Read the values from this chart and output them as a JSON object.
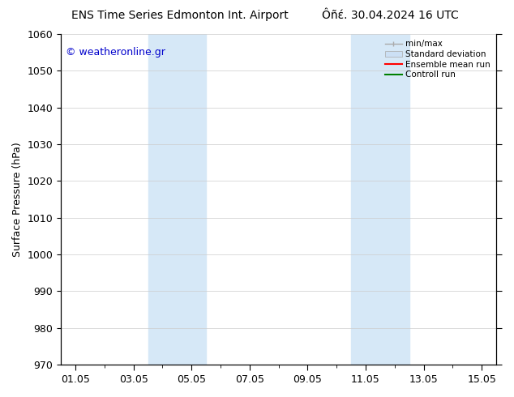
{
  "title_left": "ENS Time Series Edmonton Int. Airport",
  "title_right": "Ôñέ. 30.04.2024 16 UTC",
  "ylabel": "Surface Pressure (hPa)",
  "ylim": [
    970,
    1060
  ],
  "yticks": [
    970,
    980,
    990,
    1000,
    1010,
    1020,
    1030,
    1040,
    1050,
    1060
  ],
  "xtick_labels": [
    "01.05",
    "03.05",
    "05.05",
    "07.05",
    "09.05",
    "11.05",
    "13.05",
    "15.05"
  ],
  "shaded_bands": [
    {
      "day_start": 4,
      "day_end": 6,
      "color": "#d6e8f7"
    },
    {
      "day_start": 11,
      "day_end": 13,
      "color": "#d6e8f7"
    }
  ],
  "watermark_text": "© weatheronline.gr",
  "watermark_color": "#0000cc",
  "bg_color": "#ffffff",
  "grid_color": "#cccccc",
  "title_fontsize": 10,
  "label_fontsize": 9,
  "tick_fontsize": 9,
  "legend_labels": [
    "min/max",
    "Standard deviation",
    "Ensemble mean run",
    "Controll run"
  ],
  "legend_colors": [
    "#aaaaaa",
    "#cce0f5",
    "#ff0000",
    "#008000"
  ]
}
